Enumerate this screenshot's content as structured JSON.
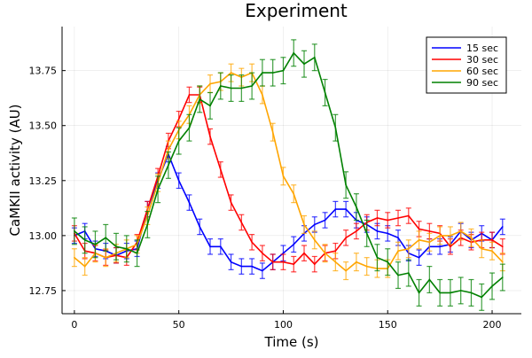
{
  "chart_data": {
    "type": "line",
    "title": "Experiment",
    "xlabel": "Time (s)",
    "ylabel": "CaMKII activity (AU)",
    "xlim": [
      -5.9,
      214
    ],
    "ylim": [
      12.645,
      13.95
    ],
    "xticks": [
      0,
      50,
      100,
      150,
      200
    ],
    "yticks": [
      12.75,
      13.0,
      13.25,
      13.5,
      13.75
    ],
    "ytick_labels": [
      "12.75",
      "13.00",
      "13.25",
      "13.50",
      "13.75"
    ],
    "grid": true,
    "legend_position": "top-right",
    "x": [
      0,
      5,
      10,
      15,
      20,
      25,
      30,
      35,
      40,
      45,
      50,
      55,
      60,
      65,
      70,
      75,
      80,
      85,
      90,
      95,
      100,
      105,
      110,
      115,
      120,
      125,
      130,
      135,
      140,
      145,
      150,
      155,
      160,
      165,
      170,
      175,
      180,
      185,
      190,
      195,
      200,
      205
    ],
    "series": [
      {
        "name": "15 sec",
        "color": "#0000ff",
        "error": 0.035,
        "values": [
          13.0,
          13.02,
          12.94,
          12.93,
          12.91,
          12.93,
          12.94,
          13.12,
          13.25,
          13.37,
          13.25,
          13.15,
          13.04,
          12.95,
          12.95,
          12.88,
          12.86,
          12.86,
          12.84,
          12.88,
          12.92,
          12.96,
          13.01,
          13.05,
          13.07,
          13.12,
          13.12,
          13.07,
          13.05,
          13.02,
          13.01,
          12.99,
          12.92,
          12.9,
          12.95,
          12.95,
          12.96,
          13.02,
          12.98,
          13.01,
          12.98,
          13.04
        ]
      },
      {
        "name": "30 sec",
        "color": "#ff0000",
        "error": 0.035,
        "values": [
          13.01,
          12.93,
          12.92,
          12.9,
          12.91,
          12.9,
          12.97,
          13.12,
          13.27,
          13.43,
          13.53,
          13.64,
          13.64,
          13.45,
          13.3,
          13.15,
          13.06,
          12.97,
          12.92,
          12.88,
          12.88,
          12.87,
          12.92,
          12.87,
          12.92,
          12.93,
          12.99,
          13.02,
          13.06,
          13.08,
          13.07,
          13.08,
          13.09,
          13.03,
          13.02,
          13.01,
          12.95,
          12.99,
          12.97,
          12.98,
          12.98,
          12.95
        ]
      },
      {
        "name": "60 sec",
        "color": "#ffa500",
        "error": 0.04,
        "values": [
          12.9,
          12.86,
          12.92,
          12.9,
          12.92,
          12.94,
          12.96,
          13.09,
          13.24,
          13.39,
          13.48,
          13.55,
          13.64,
          13.69,
          13.7,
          13.74,
          13.72,
          13.74,
          13.64,
          13.47,
          13.27,
          13.19,
          13.05,
          12.98,
          12.92,
          12.88,
          12.84,
          12.88,
          12.86,
          12.85,
          12.85,
          12.93,
          12.94,
          12.98,
          12.97,
          13.0,
          13.0,
          13.02,
          12.99,
          12.94,
          12.93,
          12.88
        ]
      },
      {
        "name": "90 sec",
        "color": "#008000",
        "error": 0.06,
        "values": [
          13.02,
          12.98,
          12.96,
          12.99,
          12.95,
          12.94,
          12.92,
          13.05,
          13.21,
          13.32,
          13.43,
          13.49,
          13.62,
          13.59,
          13.68,
          13.67,
          13.67,
          13.68,
          13.74,
          13.74,
          13.75,
          13.83,
          13.78,
          13.81,
          13.65,
          13.49,
          13.23,
          13.13,
          13.01,
          12.9,
          12.88,
          12.82,
          12.83,
          12.74,
          12.8,
          12.74,
          12.74,
          12.75,
          12.74,
          12.72,
          12.77,
          12.81
        ]
      }
    ]
  }
}
